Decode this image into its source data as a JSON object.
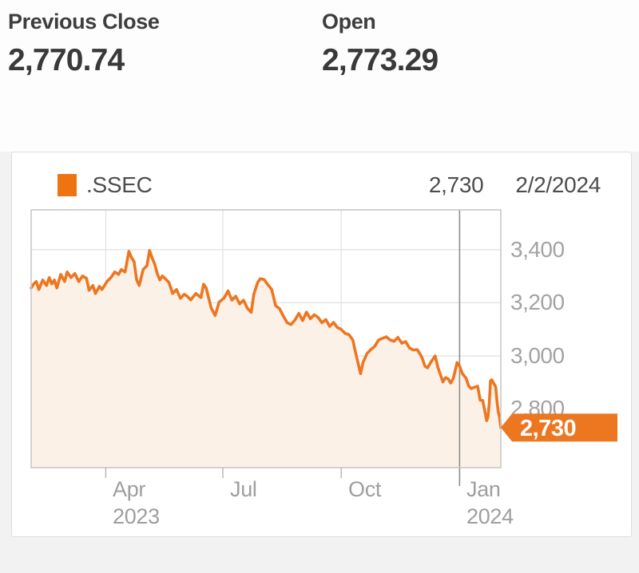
{
  "header": {
    "stats": [
      {
        "label": "Previous Close",
        "value": "2,770.74"
      },
      {
        "label": "Open",
        "value": "2,773.29"
      }
    ]
  },
  "chart_data": {
    "type": "area",
    "symbol": ".SSEC",
    "last_value": "2,730",
    "last_date": "2/2/2024",
    "series": [
      {
        "name": ".SSEC",
        "color": "#ED7621",
        "fill": "#FCF1E7",
        "swatch_color": "#EE7411",
        "points": [
          [
            0,
            3256
          ],
          [
            2,
            3271
          ],
          [
            4,
            3280
          ],
          [
            6,
            3250
          ],
          [
            9,
            3286
          ],
          [
            12,
            3265
          ],
          [
            14,
            3295
          ],
          [
            16,
            3271
          ],
          [
            18,
            3286
          ],
          [
            20,
            3256
          ],
          [
            23,
            3307
          ],
          [
            26,
            3280
          ],
          [
            28,
            3316
          ],
          [
            31,
            3295
          ],
          [
            34,
            3310
          ],
          [
            37,
            3280
          ],
          [
            40,
            3301
          ],
          [
            43,
            3292
          ],
          [
            45,
            3247
          ],
          [
            48,
            3265
          ],
          [
            50,
            3235
          ],
          [
            53,
            3262
          ],
          [
            55,
            3250
          ],
          [
            59,
            3280
          ],
          [
            62,
            3295
          ],
          [
            65,
            3316
          ],
          [
            68,
            3307
          ],
          [
            70,
            3325
          ],
          [
            73,
            3316
          ],
          [
            76,
            3394
          ],
          [
            78,
            3370
          ],
          [
            80,
            3355
          ],
          [
            82,
            3286
          ],
          [
            84,
            3265
          ],
          [
            87,
            3325
          ],
          [
            90,
            3340
          ],
          [
            92,
            3397
          ],
          [
            94,
            3370
          ],
          [
            96,
            3346
          ],
          [
            98,
            3310
          ],
          [
            100,
            3286
          ],
          [
            102,
            3301
          ],
          [
            104,
            3292
          ],
          [
            107,
            3277
          ],
          [
            110,
            3235
          ],
          [
            113,
            3250
          ],
          [
            116,
            3217
          ],
          [
            119,
            3232
          ],
          [
            121,
            3226
          ],
          [
            124,
            3211
          ],
          [
            128,
            3235
          ],
          [
            132,
            3220
          ],
          [
            134,
            3270
          ],
          [
            136,
            3256
          ],
          [
            140,
            3180
          ],
          [
            143,
            3152
          ],
          [
            146,
            3202
          ],
          [
            150,
            3218
          ],
          [
            153,
            3245
          ],
          [
            156,
            3210
          ],
          [
            159,
            3225
          ],
          [
            162,
            3196
          ],
          [
            165,
            3210
          ],
          [
            168,
            3180
          ],
          [
            171,
            3164
          ],
          [
            173,
            3231
          ],
          [
            176,
            3276
          ],
          [
            178,
            3291
          ],
          [
            181,
            3288
          ],
          [
            184,
            3268
          ],
          [
            187,
            3250
          ],
          [
            190,
            3189
          ],
          [
            193,
            3178
          ],
          [
            196,
            3150
          ],
          [
            199,
            3125
          ],
          [
            202,
            3118
          ],
          [
            205,
            3135
          ],
          [
            208,
            3160
          ],
          [
            211,
            3133
          ],
          [
            214,
            3165
          ],
          [
            217,
            3140
          ],
          [
            220,
            3155
          ],
          [
            223,
            3145
          ],
          [
            226,
            3125
          ],
          [
            229,
            3137
          ],
          [
            232,
            3111
          ],
          [
            235,
            3126
          ],
          [
            238,
            3107
          ],
          [
            241,
            3100
          ],
          [
            244,
            3085
          ],
          [
            247,
            3080
          ],
          [
            250,
            3060
          ],
          [
            252,
            3015
          ],
          [
            256,
            2933
          ],
          [
            258,
            2976
          ],
          [
            261,
            3009
          ],
          [
            264,
            3024
          ],
          [
            267,
            3036
          ],
          [
            270,
            3060
          ],
          [
            273,
            3066
          ],
          [
            276,
            3072
          ],
          [
            279,
            3060
          ],
          [
            282,
            3055
          ],
          [
            285,
            3070
          ],
          [
            288,
            3048
          ],
          [
            291,
            3054
          ],
          [
            294,
            3030
          ],
          [
            297,
            3022
          ],
          [
            300,
            3024
          ],
          [
            302,
            3009
          ],
          [
            304,
            2991
          ],
          [
            306,
            2961
          ],
          [
            308,
            2955
          ],
          [
            311,
            2979
          ],
          [
            314,
            3000
          ],
          [
            316,
            2958
          ],
          [
            318,
            2930
          ],
          [
            320,
            2902
          ],
          [
            322,
            2918
          ],
          [
            324,
            2914
          ],
          [
            326,
            2898
          ],
          [
            328,
            2914
          ],
          [
            330,
            2954
          ],
          [
            331,
            2975
          ],
          [
            333,
            2962
          ],
          [
            335,
            2934
          ],
          [
            338,
            2916
          ],
          [
            340,
            2887
          ],
          [
            342,
            2877
          ],
          [
            344,
            2881
          ],
          [
            347,
            2886
          ],
          [
            349,
            2833
          ],
          [
            351,
            2832
          ],
          [
            354,
            2756
          ],
          [
            355,
            2770
          ],
          [
            356,
            2820
          ],
          [
            357,
            2906
          ],
          [
            358,
            2910
          ],
          [
            361,
            2883
          ],
          [
            362,
            2830
          ],
          [
            363,
            2789
          ],
          [
            364,
            2770
          ],
          [
            365,
            2730
          ]
        ]
      }
    ],
    "x_axis": {
      "range_days": [
        0,
        365
      ],
      "ticks": [
        {
          "day": 58,
          "label": "Apr",
          "sublabel": "2023"
        },
        {
          "day": 149,
          "label": "Jul"
        },
        {
          "day": 241,
          "label": "Oct"
        },
        {
          "day": 333,
          "label": "Jan",
          "sublabel": "2024"
        }
      ]
    },
    "y_axis": {
      "range": [
        2579,
        3550
      ],
      "ticks": [
        {
          "value": 3400,
          "label": "3,400"
        },
        {
          "value": 3200,
          "label": "3,200"
        },
        {
          "value": 3000,
          "label": "3,000"
        },
        {
          "value": 2800,
          "label": "2,800"
        }
      ]
    },
    "marker": {
      "day": 333,
      "color": "#8F8F8F"
    },
    "price_tag": {
      "label": "2,730",
      "value": 2730,
      "bg": "#ED7621",
      "text_color": "#FFFFFF"
    },
    "layout": {
      "grid": true,
      "grid_color": "#E1E1E1",
      "plot_border_color": "#C7C7C7",
      "tick_color": "#B5B5B5",
      "legend_position": "top-left",
      "y_labels_position": "right",
      "x_label_rows": 2
    }
  }
}
